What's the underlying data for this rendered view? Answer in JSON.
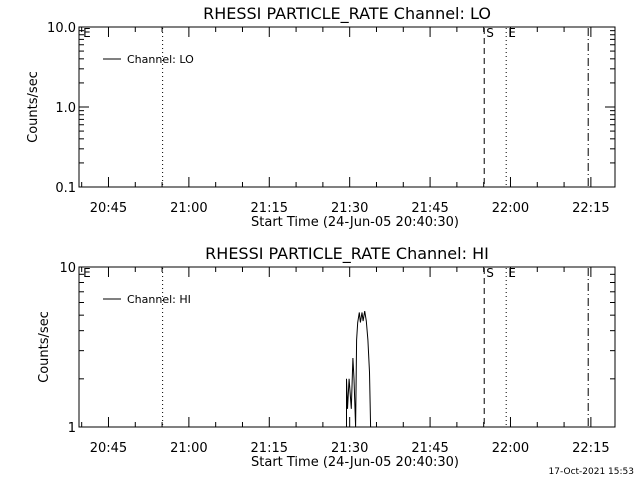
{
  "chart_data": [
    {
      "type": "line",
      "title": "RHESSI PARTICLE_RATE Channel: LO",
      "xlabel": "Start Time (24-Jun-05 20:40:30)",
      "ylabel": "Counts/sec",
      "yscale": "log",
      "ylim": [
        0.1,
        10.0
      ],
      "xlim_min_from_start": [
        -1.0,
        99.0
      ],
      "y_ticks": [
        {
          "value": 0.1,
          "label": "0.1"
        },
        {
          "value": 1.0,
          "label": "1.0"
        },
        {
          "value": 10.0,
          "label": "10.0"
        }
      ],
      "x_ticks": [
        {
          "min": 4.5,
          "label": "20:45"
        },
        {
          "min": 19.5,
          "label": "21:00"
        },
        {
          "min": 34.5,
          "label": "21:15"
        },
        {
          "min": 49.5,
          "label": "21:30"
        },
        {
          "min": 64.5,
          "label": "21:45"
        },
        {
          "min": 79.5,
          "label": "22:00"
        },
        {
          "min": 94.5,
          "label": "22:15"
        }
      ],
      "legend": {
        "label": "Channel: LO",
        "position": "top-left"
      },
      "markers": [
        {
          "min": -0.6,
          "label": "E",
          "style": "none"
        },
        {
          "min": 14.6,
          "label": "",
          "style": "dotted"
        },
        {
          "min": 74.6,
          "label": "S",
          "style": "dashed"
        },
        {
          "min": 78.7,
          "label": "E",
          "style": "dotted"
        },
        {
          "min": 94.0,
          "label": "",
          "style": "dashdot"
        }
      ],
      "series": [
        {
          "points": []
        }
      ]
    },
    {
      "type": "line",
      "title": "RHESSI PARTICLE_RATE Channel: HI",
      "xlabel": "Start Time (24-Jun-05 20:40:30)",
      "ylabel": "Counts/sec",
      "yscale": "log",
      "ylim": [
        1,
        10
      ],
      "xlim_min_from_start": [
        -1.0,
        99.0
      ],
      "y_ticks": [
        {
          "value": 1,
          "label": "1"
        },
        {
          "value": 10,
          "label": "10"
        }
      ],
      "x_ticks": [
        {
          "min": 4.5,
          "label": "20:45"
        },
        {
          "min": 19.5,
          "label": "21:00"
        },
        {
          "min": 34.5,
          "label": "21:15"
        },
        {
          "min": 49.5,
          "label": "21:30"
        },
        {
          "min": 64.5,
          "label": "21:45"
        },
        {
          "min": 79.5,
          "label": "22:00"
        },
        {
          "min": 94.5,
          "label": "22:15"
        }
      ],
      "legend": {
        "label": "Channel: HI",
        "position": "top-left"
      },
      "markers": [
        {
          "min": -0.6,
          "label": "E",
          "style": "none"
        },
        {
          "min": 14.6,
          "label": "",
          "style": "dotted"
        },
        {
          "min": 74.6,
          "label": "S",
          "style": "dashed"
        },
        {
          "min": 78.7,
          "label": "E",
          "style": "dotted"
        },
        {
          "min": 94.0,
          "label": "",
          "style": "dashdot"
        }
      ],
      "series": [
        {
          "points": [
            [
              48.9,
              1.0
            ],
            [
              48.9,
              2.0
            ],
            [
              49.1,
              1.3
            ],
            [
              49.4,
              2.0
            ],
            [
              49.8,
              1.3
            ],
            [
              50.1,
              2.7
            ],
            [
              50.3,
              2.0
            ],
            [
              50.6,
              1.0
            ],
            [
              50.8,
              3.5
            ],
            [
              51.0,
              4.5
            ],
            [
              51.3,
              5.2
            ],
            [
              51.5,
              4.5
            ],
            [
              51.8,
              5.2
            ],
            [
              52.0,
              4.6
            ],
            [
              52.3,
              5.3
            ],
            [
              52.6,
              4.6
            ],
            [
              52.9,
              3.5
            ],
            [
              53.2,
              2.2
            ],
            [
              53.4,
              1.0
            ]
          ]
        }
      ]
    }
  ],
  "footer": {
    "timestamp": "17-Oct-2021 15:53"
  }
}
